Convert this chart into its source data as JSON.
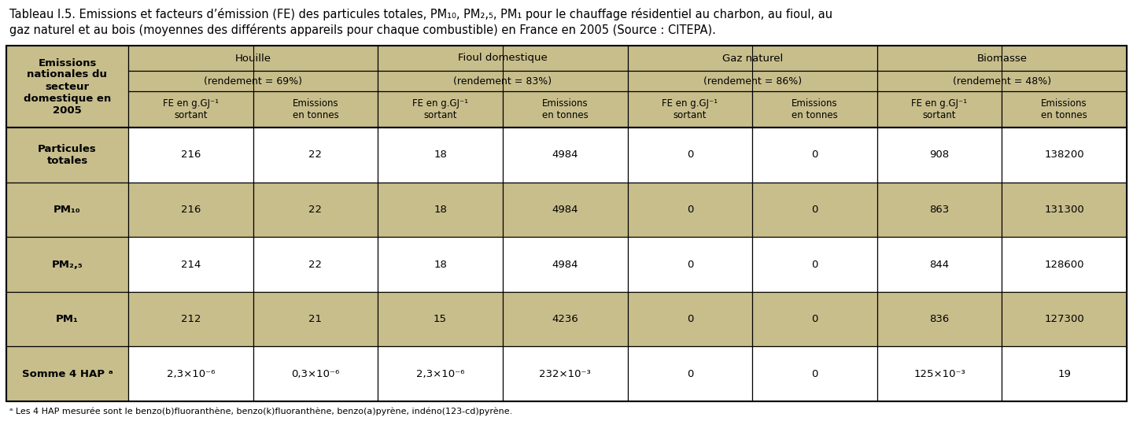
{
  "title_line1": "Tableau I.5. Emissions et facteurs d’émission (FE) des particules totales, PM₁₀, PM₂,₅, PM₁ pour le chauffage résidentiel au charbon, au fioul, au",
  "title_line2": "gaz naturel et au bois (moyennes des différents appareils pour chaque combustible) en France en 2005 (Source : CITEPA).",
  "footnote": "ᵃ Les 4 HAP mesurée sont le benzo(b)fluoranthène, benzo(k)fluoranthène, benzo(a)pyrène, indéno(123-cd)pyrène.",
  "header_bg": "#C8BE8C",
  "row_bg_alt": "#C8BE8C",
  "row_bg_white": "#FFFFFF",
  "col1_header": "Emissions\nnationales du\nsecteur\ndomestique en\n2005",
  "fuel_headers": [
    "Houille",
    "Fioul domestique",
    "Gaz naturel",
    "Biomasse"
  ],
  "rendements": [
    "(rendement = 69%)",
    "(rendement = 83%)",
    "(rendement = 86%)",
    "(rendement = 48%)"
  ],
  "sub_col1": "FE en g.GJ⁻¹\nsortant",
  "sub_col2": "Emissions\nen tonnes",
  "rows": [
    {
      "label": "Particules\ntotales",
      "values": [
        "216",
        "22",
        "18",
        "4984",
        "0",
        "0",
        "908",
        "138200"
      ],
      "bg": "#FFFFFF"
    },
    {
      "label": "PM₁₀",
      "values": [
        "216",
        "22",
        "18",
        "4984",
        "0",
        "0",
        "863",
        "131300"
      ],
      "bg": "#C8BE8C"
    },
    {
      "label": "PM₂,₅",
      "values": [
        "214",
        "22",
        "18",
        "4984",
        "0",
        "0",
        "844",
        "128600"
      ],
      "bg": "#FFFFFF"
    },
    {
      "label": "PM₁",
      "values": [
        "212",
        "21",
        "15",
        "4236",
        "0",
        "0",
        "836",
        "127300"
      ],
      "bg": "#C8BE8C"
    },
    {
      "label": "Somme 4 HAP ᵃ",
      "values": [
        "2,3×10⁻⁶",
        "0,3×10⁻⁶",
        "2,3×10⁻⁶",
        "232×10⁻³",
        "0",
        "0",
        "125×10⁻³",
        "19"
      ],
      "bg": "#FFFFFF"
    }
  ],
  "title_fontsize": 10.5,
  "header_fontsize": 9.5,
  "cell_fontsize": 9.5,
  "footnote_fontsize": 8.0
}
